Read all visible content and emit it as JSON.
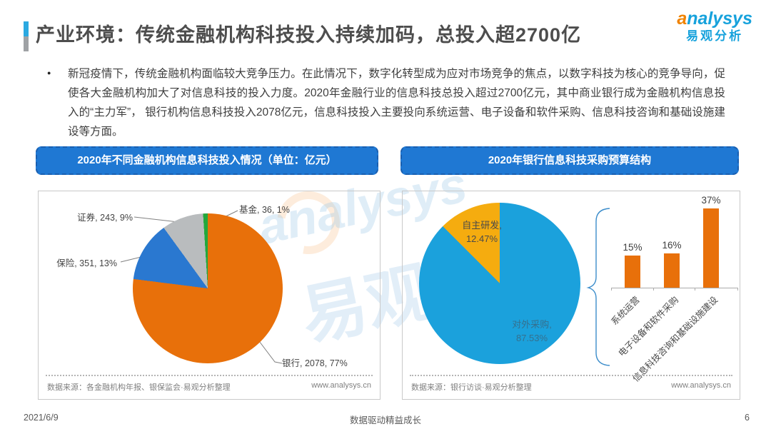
{
  "header": {
    "title": "产业环境：传统金融机构科技投入持续加码，总投入超2700亿",
    "logo_brand": "analysys",
    "logo_cn": "易观分析"
  },
  "intro": {
    "text": "新冠疫情下，传统金融机构面临较大竞争压力。在此情况下，数字化转型成为应对市场竞争的焦点，以数字科技为核心的竞争导向，促使各大金融机构加大了对信息科技的投入力度。2020年金融行业的信息科技总投入超过2700亿元，其中商业银行成为金融机构信息投入的“主力军”， 银行机构信息科技投入2078亿元，信息科技投入主要投向系统运营、电子设备和软件采购、信息科技咨询和基础设施建设等方面。"
  },
  "left_panel": {
    "header": "2020年不同金融机构信息科技投入情况（单位：亿元）",
    "source": "数据来源：各金融机构年报、银保监会·易观分析整理",
    "website": "www.analysys.cn"
  },
  "right_panel": {
    "header": "2020年银行信息科技采购预算结构",
    "source": "数据来源：银行访谈·易观分析整理",
    "website": "www.analysys.cn"
  },
  "watermark": {
    "brand": "analysys",
    "cn": "易观"
  },
  "footer": {
    "date": "2021/6/9",
    "slogan": "数据驱动精益成长",
    "page": "6"
  },
  "chart_data": [
    {
      "id": "left_pie",
      "type": "pie",
      "title": "2020年不同金融机构信息科技投入情况（单位：亿元）",
      "unit": "亿元",
      "start_angle_deg": 0,
      "direction": "clockwise",
      "slices": [
        {
          "name": "银行",
          "value": 2078,
          "pct": 77,
          "color": "#E8700A",
          "label": "银行, 2078, 77%"
        },
        {
          "name": "保险",
          "value": 351,
          "pct": 13,
          "color": "#2A78D0",
          "label": "保险, 351, 13%"
        },
        {
          "name": "证券",
          "value": 243,
          "pct": 9,
          "color": "#B9BCBE",
          "label": "证券, 243, 9%"
        },
        {
          "name": "基金",
          "value": 36,
          "pct": 1,
          "color": "#22A83C",
          "label": "基金, 36, 1%"
        }
      ]
    },
    {
      "id": "right_pie",
      "type": "pie",
      "title": "2020年银行信息科技采购预算结构",
      "start_angle_deg": 0,
      "direction": "clockwise",
      "slices": [
        {
          "name": "对外采购",
          "pct": 87.53,
          "color": "#1BA1DC",
          "label_name": "对外采购,",
          "label_pct": "87.53%"
        },
        {
          "name": "自主研发",
          "pct": 12.47,
          "color": "#F5AC0F",
          "label_name": "自主研发,",
          "label_pct": "12.47%"
        }
      ]
    },
    {
      "id": "right_bars",
      "type": "bar",
      "categories": [
        "系统运营",
        "电子设备和软件采购",
        "信息科技咨询和基础设施建设"
      ],
      "values": [
        15,
        16,
        37
      ],
      "value_labels": [
        "15%",
        "16%",
        "37%"
      ],
      "bar_color": "#E8700A",
      "ylim": [
        0,
        40
      ],
      "grid": false
    }
  ]
}
